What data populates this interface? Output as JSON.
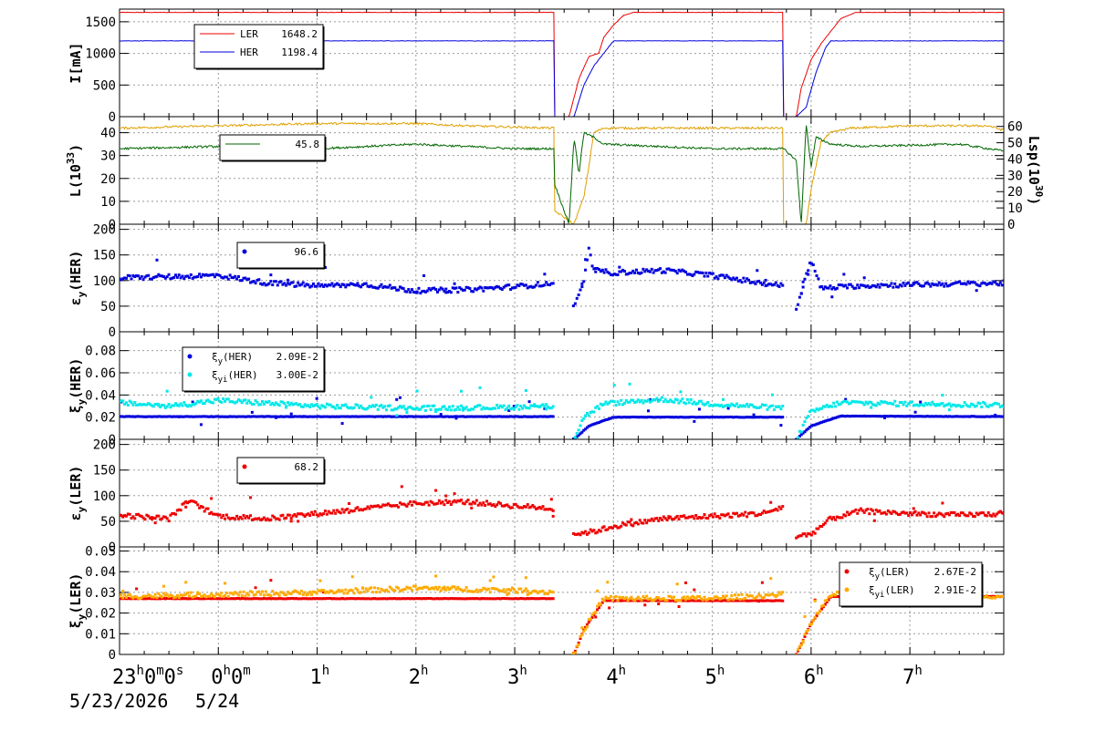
{
  "x_axis": {
    "ticks": [
      {
        "h": "23",
        "u": "h",
        "m": "0",
        "u2": "m",
        "s": "0",
        "u3": "s",
        "t": -1.0
      },
      {
        "h": "0",
        "u": "h",
        "m": "0",
        "u2": "m",
        "t": 0
      },
      {
        "h": "1",
        "u": "h",
        "t": 1
      },
      {
        "h": "2",
        "u": "h",
        "t": 2
      },
      {
        "h": "3",
        "u": "h",
        "t": 3
      },
      {
        "h": "4",
        "u": "h",
        "t": 4
      },
      {
        "h": "5",
        "u": "h",
        "t": 5
      },
      {
        "h": "6",
        "u": "h",
        "t": 6
      },
      {
        "h": "7",
        "u": "h",
        "t": 7
      }
    ],
    "dates": [
      "5/23/2026",
      "5/24"
    ],
    "range": [
      -1.0,
      7.95
    ]
  },
  "colors": {
    "red": "#ee0000",
    "blue": "#0000dd",
    "gold": "#e0a000",
    "green": "#006600",
    "cyan": "#00e8e8",
    "orange": "#ffaa00",
    "darkred": "#cc0000"
  },
  "chart_data": [
    {
      "type": "line",
      "ylabel": "I[mA]",
      "yticks": [
        "0",
        "500",
        "1000",
        "1500"
      ],
      "ylim": [
        0,
        1700
      ],
      "legend": [
        {
          "name": "LER",
          "value": "1648.2",
          "color": "#ee0000",
          "marker": "line"
        },
        {
          "name": "HER",
          "value": "1198.4",
          "color": "#0000dd",
          "marker": "line"
        }
      ],
      "series": [
        {
          "name": "LER",
          "color": "#ee0000",
          "points": [
            [
              -1.0,
              1648
            ],
            [
              3.4,
              1648
            ],
            [
              3.4,
              0
            ],
            [
              3.55,
              0
            ],
            [
              3.65,
              600
            ],
            [
              3.75,
              950
            ],
            [
              3.85,
              1000
            ],
            [
              3.9,
              1250
            ],
            [
              4.0,
              1450
            ],
            [
              4.1,
              1600
            ],
            [
              4.2,
              1648
            ],
            [
              5.72,
              1648
            ],
            [
              5.72,
              0
            ],
            [
              5.85,
              0
            ],
            [
              5.9,
              450
            ],
            [
              6.0,
              900
            ],
            [
              6.1,
              1150
            ],
            [
              6.2,
              1350
            ],
            [
              6.3,
              1550
            ],
            [
              6.45,
              1648
            ],
            [
              7.95,
              1648
            ]
          ]
        },
        {
          "name": "HER",
          "color": "#0000dd",
          "points": [
            [
              -1.0,
              1198
            ],
            [
              3.4,
              1198
            ],
            [
              3.4,
              0
            ],
            [
              3.6,
              0
            ],
            [
              3.7,
              500
            ],
            [
              3.8,
              800
            ],
            [
              3.9,
              1000
            ],
            [
              4.0,
              1198
            ],
            [
              5.72,
              1198
            ],
            [
              5.72,
              0
            ],
            [
              5.85,
              0
            ],
            [
              5.95,
              150
            ],
            [
              6.05,
              700
            ],
            [
              6.15,
              1100
            ],
            [
              6.2,
              1198
            ],
            [
              7.95,
              1198
            ]
          ]
        }
      ]
    },
    {
      "type": "line",
      "ylabel": "L(10^33)",
      "ylabel_main": "L(10",
      "ylabel_sup": "33",
      "ylabel_end": ")",
      "yticks": [
        "0",
        "10",
        "20",
        "30",
        "40"
      ],
      "ylim": [
        0,
        47
      ],
      "y2label_main": "Lsp(10",
      "y2label_sup": "30",
      "y2label_end": ")",
      "y2ticks": [
        "0",
        "10",
        "20",
        "30",
        "40",
        "50",
        "60"
      ],
      "y2lim": [
        0,
        66
      ],
      "legend": [
        {
          "name": "",
          "value": "45.8",
          "color": "#006600",
          "marker": "line"
        }
      ],
      "series": [
        {
          "name": "L",
          "color": "#e0a000",
          "points": [
            [
              -1.0,
              42
            ],
            [
              0,
              43
            ],
            [
              1,
              44
            ],
            [
              2,
              44
            ],
            [
              2.5,
              43
            ],
            [
              3.4,
              42
            ],
            [
              3.4,
              6
            ],
            [
              3.6,
              0
            ],
            [
              3.7,
              12
            ],
            [
              3.75,
              25
            ],
            [
              3.8,
              40
            ],
            [
              3.9,
              42
            ],
            [
              5.72,
              42
            ],
            [
              5.72,
              0
            ],
            [
              5.95,
              0
            ],
            [
              6.0,
              15
            ],
            [
              6.1,
              36
            ],
            [
              6.2,
              40
            ],
            [
              6.4,
              42
            ],
            [
              7.0,
              43
            ],
            [
              7.8,
              43
            ],
            [
              7.95,
              41
            ]
          ]
        },
        {
          "name": "Lsp",
          "color": "#006600",
          "points": [
            [
              -1.0,
              33
            ],
            [
              0,
              34
            ],
            [
              1,
              33
            ],
            [
              2,
              35
            ],
            [
              3,
              33
            ],
            [
              3.4,
              33
            ],
            [
              3.4,
              18
            ],
            [
              3.55,
              0
            ],
            [
              3.6,
              38
            ],
            [
              3.65,
              22
            ],
            [
              3.7,
              40
            ],
            [
              3.8,
              38
            ],
            [
              3.9,
              35
            ],
            [
              5.0,
              33
            ],
            [
              5.72,
              33
            ],
            [
              5.85,
              28
            ],
            [
              5.9,
              0
            ],
            [
              5.95,
              44
            ],
            [
              6.0,
              25
            ],
            [
              6.05,
              38
            ],
            [
              6.2,
              35
            ],
            [
              6.5,
              34
            ],
            [
              7.5,
              35
            ],
            [
              7.95,
              32
            ]
          ]
        }
      ]
    },
    {
      "type": "scatter",
      "ylabel": "ε_y(HER)",
      "ylabel_main": "ε",
      "ylabel_sub": "y",
      "ylabel_end": "(HER)",
      "yticks": [
        "0",
        "50",
        "100",
        "150",
        "200"
      ],
      "ylim": [
        0,
        210
      ],
      "legend": [
        {
          "name": "",
          "value": "96.6",
          "color": "#0000dd",
          "marker": "dot"
        }
      ],
      "series": [
        {
          "name": "εy(HER)",
          "color": "#0000dd",
          "points": [
            [
              -1.0,
              105
            ],
            [
              0,
              110
            ],
            [
              0.5,
              95
            ],
            [
              1,
              90
            ],
            [
              1.5,
              92
            ],
            [
              2,
              80
            ],
            [
              2.5,
              82
            ],
            [
              3,
              88
            ],
            [
              3.4,
              95
            ],
            [
              3.6,
              45
            ],
            [
              3.7,
              100
            ],
            [
              3.75,
              160
            ],
            [
              3.8,
              120
            ],
            [
              4,
              115
            ],
            [
              4.5,
              120
            ],
            [
              5,
              110
            ],
            [
              5.5,
              95
            ],
            [
              5.72,
              90
            ],
            [
              5.85,
              45
            ],
            [
              6.0,
              140
            ],
            [
              6.1,
              85
            ],
            [
              6.5,
              90
            ],
            [
              7,
              92
            ],
            [
              7.95,
              95
            ]
          ]
        }
      ],
      "gaps": [
        [
          3.4,
          3.58
        ],
        [
          5.72,
          5.84
        ]
      ]
    },
    {
      "type": "scatter",
      "ylabel": "ξ_y(HER)",
      "ylabel_main": "ξ",
      "ylabel_sub": "y",
      "ylabel_end": "(HER)",
      "yticks": [
        "0",
        "0.02",
        "0.04",
        "0.06",
        "0.08"
      ],
      "ylim": [
        0,
        0.097
      ],
      "legend": [
        {
          "name": "ξy(HER)",
          "nm": "ξ",
          "nsub": "y",
          "nend": "(HER)",
          "value": "2.09E-2",
          "color": "#0000dd",
          "marker": "dot"
        },
        {
          "name": "ξyi(HER)",
          "nm": "ξ",
          "nsub": "yi",
          "nend": "(HER)",
          "value": "3.00E-2",
          "color": "#00e8e8",
          "marker": "dot"
        }
      ],
      "series": [
        {
          "name": "ξy(HER)",
          "color": "#0000dd",
          "points": [
            [
              -1.0,
              0.0205
            ],
            [
              3.4,
              0.0205
            ],
            [
              3.6,
              0
            ],
            [
              3.75,
              0.012
            ],
            [
              4.0,
              0.02
            ],
            [
              5.72,
              0.02
            ],
            [
              5.85,
              0
            ],
            [
              6.0,
              0.012
            ],
            [
              6.3,
              0.021
            ],
            [
              7.95,
              0.0205
            ]
          ]
        },
        {
          "name": "ξyi(HER)",
          "color": "#00e8e8",
          "points": [
            [
              -1.0,
              0.033
            ],
            [
              -0.5,
              0.03
            ],
            [
              0,
              0.035
            ],
            [
              1,
              0.03
            ],
            [
              2,
              0.028
            ],
            [
              3,
              0.029
            ],
            [
              3.4,
              0.03
            ],
            [
              3.6,
              0
            ],
            [
              3.7,
              0.02
            ],
            [
              3.9,
              0.032
            ],
            [
              4.5,
              0.036
            ],
            [
              5.0,
              0.032
            ],
            [
              5.72,
              0.028
            ],
            [
              5.85,
              0
            ],
            [
              6.0,
              0.025
            ],
            [
              6.3,
              0.033
            ],
            [
              7,
              0.032
            ],
            [
              7.95,
              0.031
            ]
          ]
        }
      ],
      "gaps": [
        [
          3.4,
          3.58
        ],
        [
          5.72,
          5.84
        ]
      ]
    },
    {
      "type": "scatter",
      "ylabel": "ε_y(LER)",
      "ylabel_main": "ε",
      "ylabel_sub": "y",
      "ylabel_end": "(LER)",
      "yticks": [
        "0",
        "50",
        "100",
        "150",
        "200"
      ],
      "ylim": [
        0,
        210
      ],
      "legend": [
        {
          "name": "",
          "value": "68.2",
          "color": "#ee0000",
          "marker": "dot"
        }
      ],
      "series": [
        {
          "name": "εy(LER)",
          "color": "#ee0000",
          "points": [
            [
              -1.0,
              62
            ],
            [
              -0.5,
              55
            ],
            [
              -0.3,
              90
            ],
            [
              0,
              60
            ],
            [
              0.5,
              55
            ],
            [
              1,
              65
            ],
            [
              1.5,
              75
            ],
            [
              2,
              85
            ],
            [
              2.5,
              88
            ],
            [
              3,
              80
            ],
            [
              3.4,
              75
            ],
            [
              3.6,
              25
            ],
            [
              3.8,
              30
            ],
            [
              4,
              40
            ],
            [
              4.5,
              55
            ],
            [
              5,
              60
            ],
            [
              5.5,
              65
            ],
            [
              5.72,
              78
            ],
            [
              5.85,
              20
            ],
            [
              6.0,
              25
            ],
            [
              6.2,
              55
            ],
            [
              6.5,
              70
            ],
            [
              7,
              65
            ],
            [
              7.5,
              62
            ],
            [
              7.95,
              65
            ]
          ]
        }
      ],
      "gaps": [
        [
          3.4,
          3.58
        ],
        [
          5.72,
          5.84
        ]
      ]
    },
    {
      "type": "scatter",
      "ylabel": "ξ_y(LER)",
      "ylabel_main": "ξ",
      "ylabel_sub": "y",
      "ylabel_end": "(LER)",
      "yticks": [
        "0",
        "0.01",
        "0.02",
        "0.03",
        "0.04",
        "0.05"
      ],
      "ylim": [
        0,
        0.052
      ],
      "legend": [
        {
          "name": "ξy(LER)",
          "nm": "ξ",
          "nsub": "y",
          "nend": "(LER)",
          "value": "2.67E-2",
          "color": "#ee0000",
          "marker": "dot"
        },
        {
          "name": "ξyi(LER)",
          "nm": "ξ",
          "nsub": "yi",
          "nend": "(LER)",
          "value": "2.91E-2",
          "color": "#ffaa00",
          "marker": "dot"
        }
      ],
      "series": [
        {
          "name": "ξy(LER)",
          "color": "#ee0000",
          "points": [
            [
              -1.0,
              0.027
            ],
            [
              3.4,
              0.027
            ],
            [
              3.6,
              0
            ],
            [
              3.7,
              0.012
            ],
            [
              3.9,
              0.026
            ],
            [
              5.72,
              0.026
            ],
            [
              5.85,
              0
            ],
            [
              6.0,
              0.015
            ],
            [
              6.2,
              0.028
            ],
            [
              7.95,
              0.028
            ]
          ]
        },
        {
          "name": "ξyi(LER)",
          "color": "#ffaa00",
          "points": [
            [
              -1.0,
              0.028
            ],
            [
              0,
              0.029
            ],
            [
              1,
              0.03
            ],
            [
              2,
              0.032
            ],
            [
              3,
              0.031
            ],
            [
              3.4,
              0.03
            ],
            [
              3.6,
              0
            ],
            [
              3.7,
              0.012
            ],
            [
              3.9,
              0.027
            ],
            [
              5.0,
              0.027
            ],
            [
              5.72,
              0.029
            ],
            [
              5.85,
              0
            ],
            [
              6.0,
              0.015
            ],
            [
              6.2,
              0.029
            ],
            [
              7,
              0.03
            ],
            [
              7.95,
              0.028
            ]
          ]
        }
      ],
      "gaps": [
        [
          3.4,
          3.58
        ],
        [
          5.72,
          5.84
        ]
      ]
    }
  ]
}
